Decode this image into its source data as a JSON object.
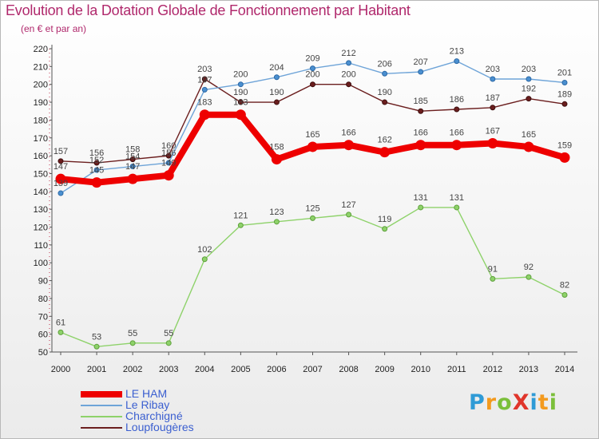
{
  "title": "Evolution de la Dotation Globale de Fonctionnement par Habitant",
  "subtitle": "(en € et par an)",
  "logo": {
    "text": "ProXiti",
    "letters": [
      {
        "ch": "P",
        "color": "#2f9bd6"
      },
      {
        "ch": "r",
        "color": "#f39a1e"
      },
      {
        "ch": "o",
        "color": "#7bbf3a"
      },
      {
        "ch": "X",
        "color": "#e0352b"
      },
      {
        "ch": "i",
        "color": "#2f9bd6"
      },
      {
        "ch": "t",
        "color": "#f39a1e"
      },
      {
        "ch": "i",
        "color": "#7bbf3a"
      }
    ]
  },
  "chart_data": {
    "type": "line",
    "title": "Evolution de la Dotation Globale de Fonctionnement par Habitant",
    "subtitle": "(en € et par an)",
    "xlabel": "",
    "ylabel": "",
    "ylim": [
      50,
      220
    ],
    "yticks": [
      50,
      60,
      70,
      80,
      90,
      100,
      110,
      120,
      130,
      140,
      150,
      160,
      170,
      180,
      190,
      200,
      210,
      220
    ],
    "x": [
      "2000",
      "2001",
      "2002",
      "2003",
      "2004",
      "2005",
      "2006",
      "2007",
      "2008",
      "2009",
      "2010",
      "2011",
      "2012",
      "2013",
      "2014"
    ],
    "grid": false,
    "legend_position": "bottom-left",
    "series": [
      {
        "name": "Loupfougères",
        "color": "#6b1e1e",
        "values": [
          157,
          156,
          158,
          160,
          203,
          190,
          190,
          200,
          200,
          190,
          185,
          186,
          187,
          192,
          189
        ]
      },
      {
        "name": "Le Ribay",
        "color": "#6ea4d8",
        "values": [
          139,
          152,
          154,
          156,
          197,
          200,
          204,
          209,
          212,
          206,
          207,
          213,
          203,
          203,
          201
        ]
      },
      {
        "name": "Charchigné",
        "color": "#8ed26a",
        "values": [
          61,
          53,
          55,
          55,
          102,
          121,
          123,
          125,
          127,
          119,
          131,
          131,
          91,
          92,
          82
        ]
      },
      {
        "name": "LE HAM",
        "color": "#ee0000",
        "values": [
          147,
          145,
          147,
          149,
          183,
          183,
          158,
          165,
          166,
          162,
          166,
          166,
          167,
          165,
          159
        ]
      }
    ],
    "value_labels": {
      "LE HAM": [
        "147",
        "145",
        "147",
        "149",
        "183",
        "183",
        "158",
        "165",
        "166",
        "162",
        "166",
        "166",
        "167",
        "165",
        "159"
      ],
      "Le Ribay": [
        "139",
        "152",
        "154",
        "156",
        "197",
        "200",
        "204",
        "209",
        "212",
        "206",
        "207",
        "213",
        "203",
        "203",
        "201"
      ],
      "Charchigné": [
        "61",
        "53",
        "55",
        "55",
        "102",
        "121",
        "123",
        "125",
        "127",
        "119",
        "131",
        "131",
        "91",
        "92",
        "82"
      ],
      "Loupfougères": [
        "157",
        "156",
        "158",
        "160",
        "203",
        "190",
        "190",
        "200",
        "200",
        "190",
        "185",
        "186",
        "187",
        "192",
        "189"
      ]
    },
    "legend": [
      "LE HAM",
      "Le Ribay",
      "Charchigné",
      "Loupfougères"
    ]
  }
}
